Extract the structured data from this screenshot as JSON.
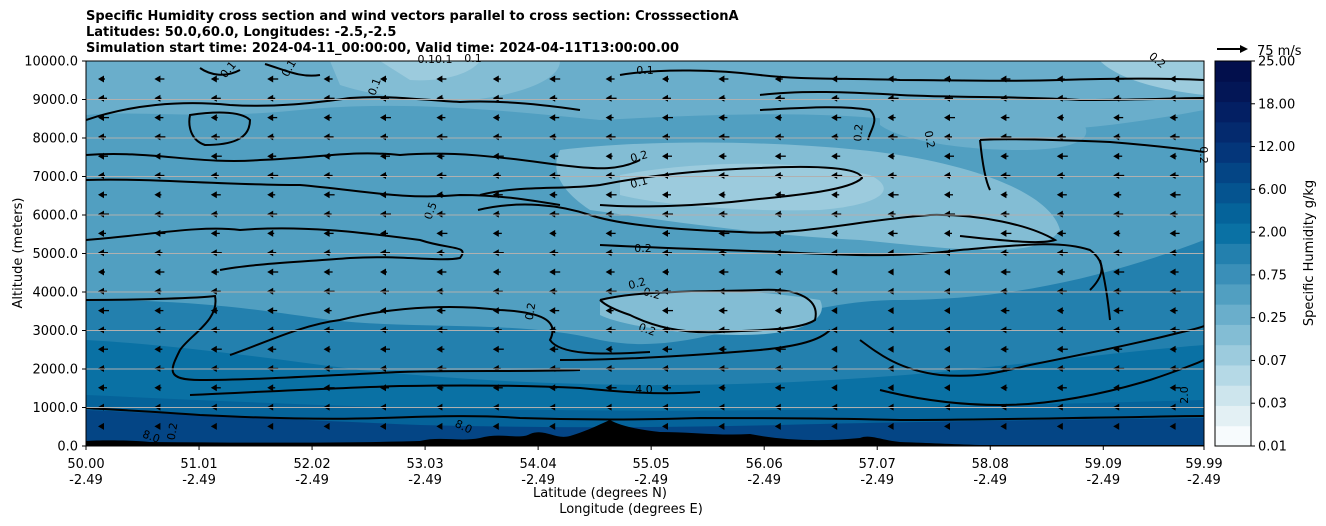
{
  "chart_data": {
    "type": "heatmap",
    "title_lines": [
      "Specific Humidity cross section and wind vectors parallel to cross section: CrosssectionA",
      "Latitudes: 50.0,60.0, Longitudes: -2.5,-2.5",
      "Simulation start time: 2024-04-11_00:00:00, Valid time: 2024-04-11T13:00:00.00"
    ],
    "ylabel": "Altitude (meters)",
    "xlabel_lines": [
      "Latitude (degrees N)",
      "Longitude (degrees E)"
    ],
    "ylim": [
      0,
      10000
    ],
    "xlim": [
      50.0,
      59.99
    ],
    "y_ticks": [
      "0.0",
      "1000.0",
      "2000.0",
      "3000.0",
      "4000.0",
      "5000.0",
      "6000.0",
      "7000.0",
      "8000.0",
      "9000.0",
      "10000.0"
    ],
    "x_ticks": [
      {
        "lat": "50.00",
        "lon": "-2.49"
      },
      {
        "lat": "51.01",
        "lon": "-2.49"
      },
      {
        "lat": "52.02",
        "lon": "-2.49"
      },
      {
        "lat": "53.03",
        "lon": "-2.49"
      },
      {
        "lat": "54.04",
        "lon": "-2.49"
      },
      {
        "lat": "55.05",
        "lon": "-2.49"
      },
      {
        "lat": "56.06",
        "lon": "-2.49"
      },
      {
        "lat": "57.07",
        "lon": "-2.49"
      },
      {
        "lat": "58.08",
        "lon": "-2.49"
      },
      {
        "lat": "59.09",
        "lon": "-2.49"
      },
      {
        "lat": "59.99",
        "lon": "-2.49"
      }
    ],
    "grid": "horizontal",
    "colorbar": {
      "label": "Specific Humidity g/kg",
      "ticks": [
        "0.01",
        "0.03",
        "0.07",
        "0.25",
        "0.75",
        "2.00",
        "6.00",
        "12.00",
        "18.00",
        "25.00"
      ],
      "colors": [
        "#f7fbfd",
        "#e3f0f4",
        "#cde5ed",
        "#b5d9e6",
        "#9ccbdd",
        "#83bdd4",
        "#6aaecb",
        "#519fc1",
        "#3a8fb8",
        "#2380ae",
        "#0a71a4",
        "#05639a",
        "#055490",
        "#044585",
        "#04367a",
        "#042a6e",
        "#031f63",
        "#031656",
        "#020f4c"
      ]
    },
    "quiver_key": {
      "label": "75 m/s"
    },
    "contour_labels": [
      "0.1",
      "0.1",
      "0.1",
      "0.10.1",
      "0.1",
      "0.1",
      "0.2",
      "0.2",
      "0.1",
      "0.5",
      "0.2",
      "0.2",
      "0.2",
      "0.2",
      "0.2",
      "0.2",
      "0.2",
      "4.0",
      "8.0",
      "8.0",
      "2.0",
      "0.2",
      "0.2"
    ]
  }
}
